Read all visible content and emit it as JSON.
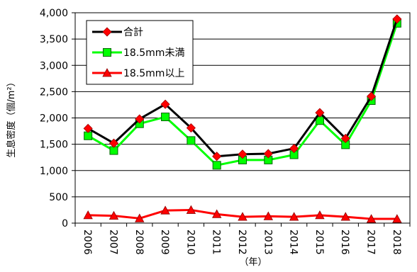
{
  "chart_data": {
    "type": "line",
    "title": "",
    "xlabel": "（年）",
    "ylabel": "生息密度（個/m²）",
    "categories": [
      "2006",
      "2007",
      "2008",
      "2009",
      "2010",
      "2011",
      "2012",
      "2013",
      "2014",
      "2015",
      "2016",
      "2017",
      "2018"
    ],
    "ylim": [
      0,
      4000
    ],
    "yticks": [
      0,
      500,
      1000,
      1500,
      2000,
      2500,
      3000,
      3500,
      4000
    ],
    "ytick_labels": [
      "0",
      "500",
      "1,000",
      "1,500",
      "2,000",
      "2,500",
      "3,000",
      "3,500",
      "4,000"
    ],
    "grid": true,
    "legend_position": "top-left",
    "series": [
      {
        "name": "合計",
        "line_color": "#000000",
        "marker": "diamond",
        "marker_color": "#ff0000",
        "values": [
          1800,
          1520,
          1980,
          2260,
          1810,
          1270,
          1310,
          1320,
          1420,
          2100,
          1610,
          2410,
          3880
        ]
      },
      {
        "name": "18.5mm未満",
        "line_color": "#00ff00",
        "marker": "square",
        "marker_color": "#00ff00",
        "values": [
          1660,
          1380,
          1890,
          2020,
          1570,
          1100,
          1200,
          1200,
          1300,
          1950,
          1490,
          2330,
          3800
        ]
      },
      {
        "name": "18.5mm以上",
        "line_color": "#ff0000",
        "marker": "triangle",
        "marker_color": "#ff0000",
        "values": [
          150,
          140,
          90,
          240,
          250,
          170,
          120,
          130,
          120,
          150,
          120,
          80,
          80
        ]
      }
    ]
  }
}
